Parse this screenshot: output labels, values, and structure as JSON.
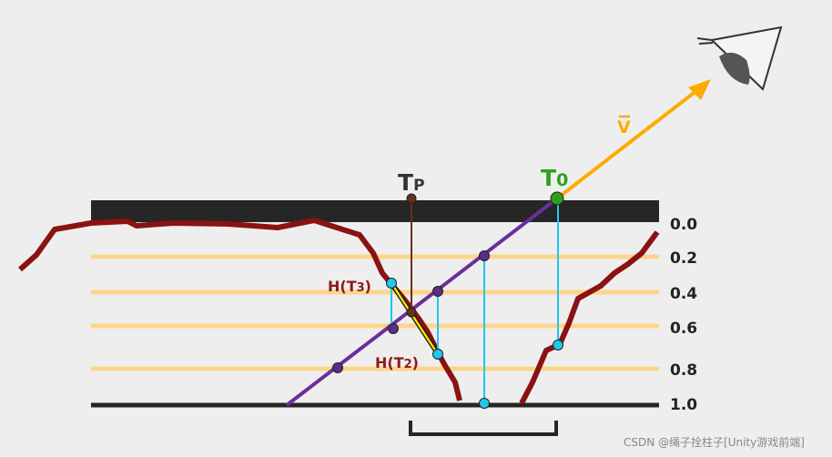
{
  "depth_labels": [
    "0.0",
    "0.2",
    "0.4",
    "0.6",
    "0.8",
    "1.0"
  ],
  "labels": {
    "tp": {
      "base": "T",
      "sub": "P"
    },
    "t0": {
      "base": "T",
      "sub": "0"
    },
    "v": "V",
    "h_t3": {
      "pre": "H(T",
      "sub": "3",
      "post": ")"
    },
    "h_t2": {
      "pre": "H(T",
      "sub": "2",
      "post": ")"
    }
  },
  "watermark": "CSDN @绳子拴柱子[Unity游戏前端]"
}
